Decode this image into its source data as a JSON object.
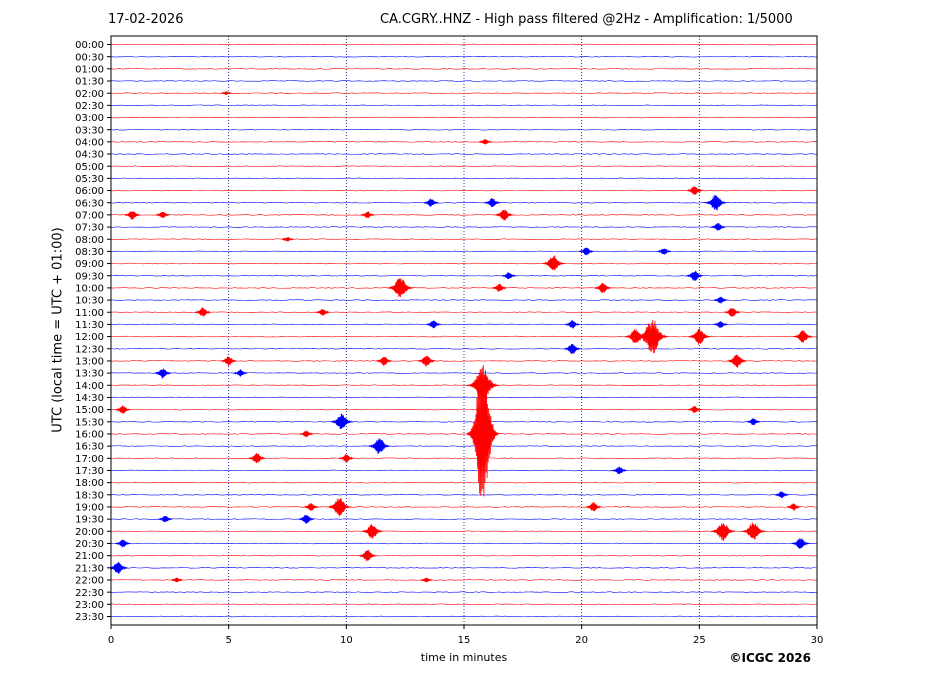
{
  "header": {
    "date": "17-02-2026",
    "title": "CA.CGRY..HNZ - High pass filtered @2Hz - Amplification: 1/5000"
  },
  "copyright": "©ICGC 2026",
  "chart_data": {
    "type": "helicorder",
    "ylabel": "UTC (local time = UTC + 01:00)",
    "xlabel": "time in minutes",
    "xlim": [
      0,
      30
    ],
    "xticks": [
      0,
      5,
      10,
      15,
      20,
      25,
      30
    ],
    "vertical_grid": [
      5,
      10,
      15,
      20,
      25
    ],
    "row_labels": [
      "00:00",
      "00:30",
      "01:00",
      "01:30",
      "02:00",
      "02:30",
      "03:00",
      "03:30",
      "04:00",
      "04:30",
      "05:00",
      "05:30",
      "06:00",
      "06:30",
      "07:00",
      "07:30",
      "08:00",
      "08:30",
      "09:00",
      "09:30",
      "10:00",
      "10:30",
      "11:00",
      "11:30",
      "12:00",
      "12:30",
      "13:00",
      "13:30",
      "14:00",
      "14:30",
      "15:00",
      "15:30",
      "16:00",
      "16:30",
      "17:00",
      "17:30",
      "18:00",
      "18:30",
      "19:00",
      "19:30",
      "20:00",
      "20:30",
      "21:00",
      "21:30",
      "22:00",
      "22:30",
      "23:00",
      "23:30"
    ],
    "trace_colors": [
      "#ff0000",
      "#0000ff"
    ],
    "events": [
      {
        "row": 4,
        "minute": 4.9,
        "amp": 0.15
      },
      {
        "row": 8,
        "minute": 15.9,
        "amp": 0.25
      },
      {
        "row": 12,
        "minute": 24.8,
        "amp": 0.4
      },
      {
        "row": 13,
        "minute": 13.6,
        "amp": 0.35
      },
      {
        "row": 13,
        "minute": 16.2,
        "amp": 0.4
      },
      {
        "row": 13,
        "minute": 25.7,
        "amp": 0.7
      },
      {
        "row": 14,
        "minute": 0.9,
        "amp": 0.4
      },
      {
        "row": 14,
        "minute": 2.2,
        "amp": 0.3
      },
      {
        "row": 14,
        "minute": 10.9,
        "amp": 0.3
      },
      {
        "row": 14,
        "minute": 16.7,
        "amp": 0.5
      },
      {
        "row": 15,
        "minute": 25.8,
        "amp": 0.35
      },
      {
        "row": 16,
        "minute": 7.5,
        "amp": 0.2
      },
      {
        "row": 17,
        "minute": 20.2,
        "amp": 0.35
      },
      {
        "row": 17,
        "minute": 23.5,
        "amp": 0.3
      },
      {
        "row": 18,
        "minute": 18.8,
        "amp": 0.7
      },
      {
        "row": 19,
        "minute": 16.9,
        "amp": 0.3
      },
      {
        "row": 19,
        "minute": 24.8,
        "amp": 0.45
      },
      {
        "row": 20,
        "minute": 12.3,
        "amp": 0.9
      },
      {
        "row": 20,
        "minute": 16.5,
        "amp": 0.35
      },
      {
        "row": 20,
        "minute": 20.9,
        "amp": 0.45
      },
      {
        "row": 21,
        "minute": 25.9,
        "amp": 0.3
      },
      {
        "row": 22,
        "minute": 3.9,
        "amp": 0.4
      },
      {
        "row": 22,
        "minute": 9.0,
        "amp": 0.3
      },
      {
        "row": 22,
        "minute": 26.4,
        "amp": 0.4
      },
      {
        "row": 23,
        "minute": 13.7,
        "amp": 0.35
      },
      {
        "row": 23,
        "minute": 19.6,
        "amp": 0.35
      },
      {
        "row": 23,
        "minute": 25.9,
        "amp": 0.3
      },
      {
        "row": 24,
        "minute": 22.3,
        "amp": 0.7
      },
      {
        "row": 24,
        "minute": 23.0,
        "amp": 1.5
      },
      {
        "row": 24,
        "minute": 25.0,
        "amp": 0.7
      },
      {
        "row": 24,
        "minute": 29.4,
        "amp": 0.55
      },
      {
        "row": 25,
        "minute": 19.6,
        "amp": 0.45
      },
      {
        "row": 26,
        "minute": 5.0,
        "amp": 0.4
      },
      {
        "row": 26,
        "minute": 11.6,
        "amp": 0.4
      },
      {
        "row": 26,
        "minute": 13.4,
        "amp": 0.5
      },
      {
        "row": 26,
        "minute": 26.6,
        "amp": 0.6
      },
      {
        "row": 27,
        "minute": 2.2,
        "amp": 0.45
      },
      {
        "row": 27,
        "minute": 5.5,
        "amp": 0.3
      },
      {
        "row": 28,
        "minute": 15.8,
        "amp": 1.5
      },
      {
        "row": 30,
        "minute": 0.5,
        "amp": 0.35
      },
      {
        "row": 30,
        "minute": 24.8,
        "amp": 0.3
      },
      {
        "row": 31,
        "minute": 9.8,
        "amp": 0.7
      },
      {
        "row": 31,
        "minute": 27.3,
        "amp": 0.3
      },
      {
        "row": 32,
        "minute": 8.3,
        "amp": 0.3
      },
      {
        "row": 32,
        "minute": 15.8,
        "amp": 6.0
      },
      {
        "row": 33,
        "minute": 11.4,
        "amp": 0.7
      },
      {
        "row": 34,
        "minute": 6.2,
        "amp": 0.45
      },
      {
        "row": 34,
        "minute": 10.0,
        "amp": 0.35
      },
      {
        "row": 35,
        "minute": 21.6,
        "amp": 0.35
      },
      {
        "row": 37,
        "minute": 28.5,
        "amp": 0.3
      },
      {
        "row": 38,
        "minute": 8.5,
        "amp": 0.35
      },
      {
        "row": 38,
        "minute": 9.7,
        "amp": 0.8
      },
      {
        "row": 38,
        "minute": 20.5,
        "amp": 0.4
      },
      {
        "row": 38,
        "minute": 29.0,
        "amp": 0.3
      },
      {
        "row": 39,
        "minute": 2.3,
        "amp": 0.3
      },
      {
        "row": 39,
        "minute": 8.3,
        "amp": 0.4
      },
      {
        "row": 40,
        "minute": 11.1,
        "amp": 0.65
      },
      {
        "row": 40,
        "minute": 26.0,
        "amp": 0.8
      },
      {
        "row": 40,
        "minute": 27.3,
        "amp": 0.8
      },
      {
        "row": 41,
        "minute": 0.5,
        "amp": 0.35
      },
      {
        "row": 41,
        "minute": 29.3,
        "amp": 0.5
      },
      {
        "row": 42,
        "minute": 10.9,
        "amp": 0.5
      },
      {
        "row": 43,
        "minute": 0.3,
        "amp": 0.55
      },
      {
        "row": 44,
        "minute": 2.8,
        "amp": 0.2
      },
      {
        "row": 44,
        "minute": 13.4,
        "amp": 0.2
      }
    ]
  }
}
